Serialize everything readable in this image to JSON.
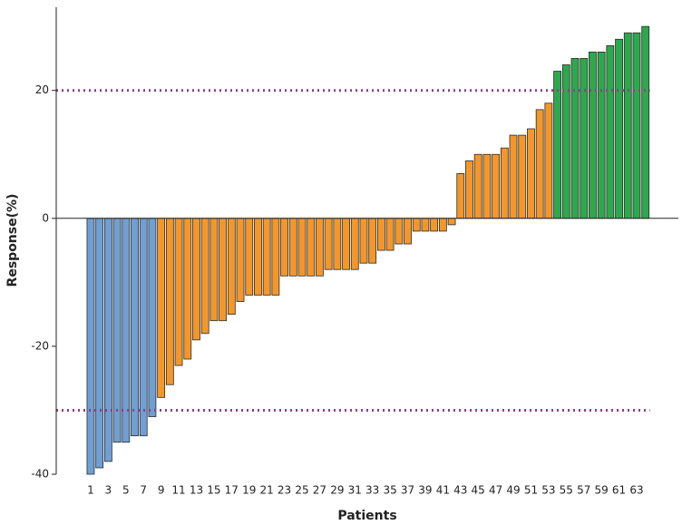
{
  "chart_data": {
    "type": "bar",
    "xlabel": "Patients",
    "ylabel": "Response(%)",
    "categories": [
      "1",
      null,
      "3",
      null,
      "5",
      null,
      "7",
      null,
      "9",
      null,
      "11",
      null,
      "13",
      null,
      "15",
      null,
      "17",
      null,
      "19",
      null,
      "21",
      null,
      "23",
      null,
      "25",
      null,
      "27",
      null,
      "29",
      null,
      "31",
      null,
      "33",
      null,
      "35",
      null,
      "37",
      null,
      "39",
      null,
      "41",
      null,
      "43",
      null,
      "45",
      null,
      "47",
      null,
      "49",
      null,
      "51",
      null,
      "53",
      null,
      "55",
      null,
      "57",
      null,
      "59",
      null,
      "61",
      null,
      "63",
      null
    ],
    "values": [
      -40,
      -39,
      -38,
      -35,
      -35,
      -34,
      -34,
      -31,
      -28,
      -26,
      -23,
      -22,
      -19,
      -18,
      -16,
      -16,
      -15,
      -13,
      -12,
      -12,
      -12,
      -12,
      -9,
      -9,
      -9,
      -9,
      -9,
      -8,
      -8,
      -8,
      -8,
      -7,
      -7,
      -5,
      -5,
      -4,
      -4,
      -2,
      -2,
      -2,
      -2,
      -1,
      7,
      9,
      10,
      10,
      10,
      11,
      13,
      13,
      14,
      17,
      18,
      23,
      24,
      25,
      25,
      26,
      26,
      27,
      28,
      29,
      29,
      30
    ],
    "colors": [
      "#6f9fd3",
      "#6f9fd3",
      "#6f9fd3",
      "#6f9fd3",
      "#6f9fd3",
      "#6f9fd3",
      "#6f9fd3",
      "#6f9fd3",
      "#f3972b",
      "#f3972b",
      "#f3972b",
      "#f3972b",
      "#f3972b",
      "#f3972b",
      "#f3972b",
      "#f3972b",
      "#f3972b",
      "#f3972b",
      "#f3972b",
      "#f3972b",
      "#f3972b",
      "#f3972b",
      "#f3972b",
      "#f3972b",
      "#f3972b",
      "#f3972b",
      "#f3972b",
      "#f3972b",
      "#f3972b",
      "#f3972b",
      "#f3972b",
      "#f3972b",
      "#f3972b",
      "#f3972b",
      "#f3972b",
      "#f3972b",
      "#f3972b",
      "#f3972b",
      "#f3972b",
      "#f3972b",
      "#f3972b",
      "#f3972b",
      "#f3972b",
      "#f3972b",
      "#f3972b",
      "#f3972b",
      "#f3972b",
      "#f3972b",
      "#f3972b",
      "#f3972b",
      "#f3972b",
      "#f3972b",
      "#f3972b",
      "#2ea84c",
      "#2ea84c",
      "#2ea84c",
      "#2ea84c",
      "#2ea84c",
      "#2ea84c",
      "#2ea84c",
      "#2ea84c",
      "#2ea84c",
      "#2ea84c",
      "#2ea84c"
    ],
    "reference_lines": [
      20,
      -30
    ],
    "reference_color": "#8e3f8e",
    "ylim": [
      -40,
      33
    ],
    "yticks": [
      -40,
      -20,
      0,
      20
    ],
    "grid": false
  }
}
